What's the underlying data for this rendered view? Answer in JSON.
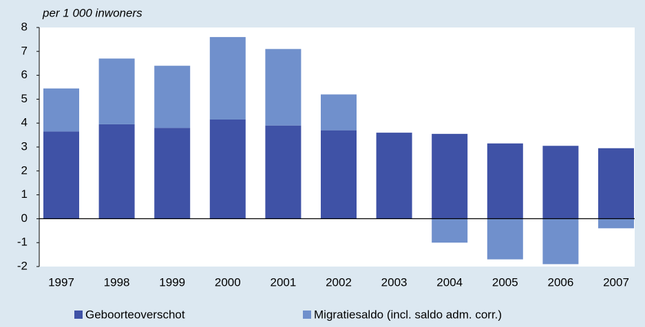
{
  "chart_data": {
    "type": "stacked_bar",
    "title": "per 1 000 inwoners",
    "categories": [
      "1997",
      "1998",
      "1999",
      "2000",
      "2001",
      "2002",
      "2003",
      "2004",
      "2005",
      "2006",
      "2007"
    ],
    "series": [
      {
        "name": "Geboorteoverschot",
        "color": "#3f52a6",
        "values": [
          3.65,
          3.95,
          3.8,
          4.15,
          3.9,
          3.7,
          3.6,
          3.55,
          3.15,
          3.05,
          2.95
        ]
      },
      {
        "name": "Migratiesaldo (incl. saldo adm. corr.)",
        "color": "#7090cc",
        "values": [
          1.8,
          2.75,
          2.6,
          3.45,
          3.2,
          1.5,
          0,
          -1.0,
          -1.7,
          -1.9,
          -0.4
        ]
      }
    ],
    "ylim": [
      -2,
      8
    ],
    "yticks": [
      -2,
      -1,
      0,
      1,
      2,
      3,
      4,
      5,
      6,
      7,
      8
    ]
  }
}
